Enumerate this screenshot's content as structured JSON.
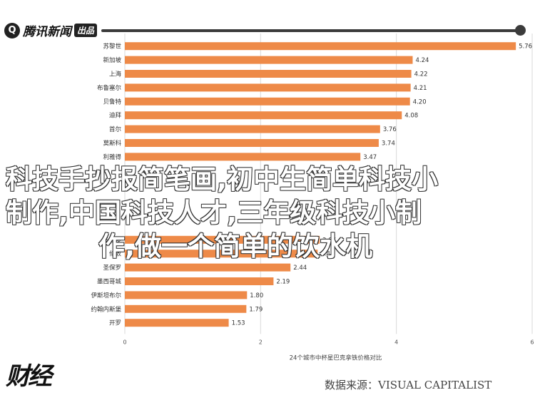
{
  "header": {
    "logo_mark": "Q",
    "logo_name": "腾讯新闻",
    "logo_tag": "出品"
  },
  "chart_data": {
    "type": "bar",
    "orientation": "horizontal",
    "categories": [
      "苏黎世",
      "新加坡",
      "上海",
      "布鲁塞尔",
      "贝鲁特",
      "迪拜",
      "首尔",
      "莫斯科",
      "利雅得",
      "",
      "",
      "",
      "",
      "",
      "多伦多",
      "伦敦",
      "圣保罗",
      "墨西哥城",
      "伊斯坦布尔",
      "约翰内斯堡",
      "开罗"
    ],
    "values": [
      5.76,
      4.24,
      4.22,
      4.21,
      4.2,
      4.08,
      3.76,
      3.74,
      3.47,
      null,
      null,
      null,
      null,
      null,
      2.87,
      2.84,
      2.44,
      2.19,
      1.8,
      1.79,
      1.53
    ],
    "value_labels": [
      "5.76",
      "4.24",
      "4.22",
      "4.21",
      "4.20",
      "4.08",
      "3.76",
      "3.74",
      "3.47",
      "",
      "",
      "",
      "",
      "",
      "2.87",
      "2.84",
      "2.44",
      "2.19",
      "1.80",
      "1.79",
      "1.53"
    ],
    "xlim": [
      0,
      6
    ],
    "xticks": [
      0,
      2,
      4,
      6
    ],
    "xlabel": "24个城市中杯星巴克拿铁价格对比",
    "bar_color": "#ee8a48",
    "grid": true
  },
  "overlay": {
    "line1": "科技手抄报简笔画,初中生简单科技小",
    "line2": "制作,中国科技人才,三年级科技小制",
    "line3": "作,做一个简单的饮水机"
  },
  "footer": {
    "brand": "财经",
    "source": "数据来源：VISUAL CAPITALIST"
  }
}
